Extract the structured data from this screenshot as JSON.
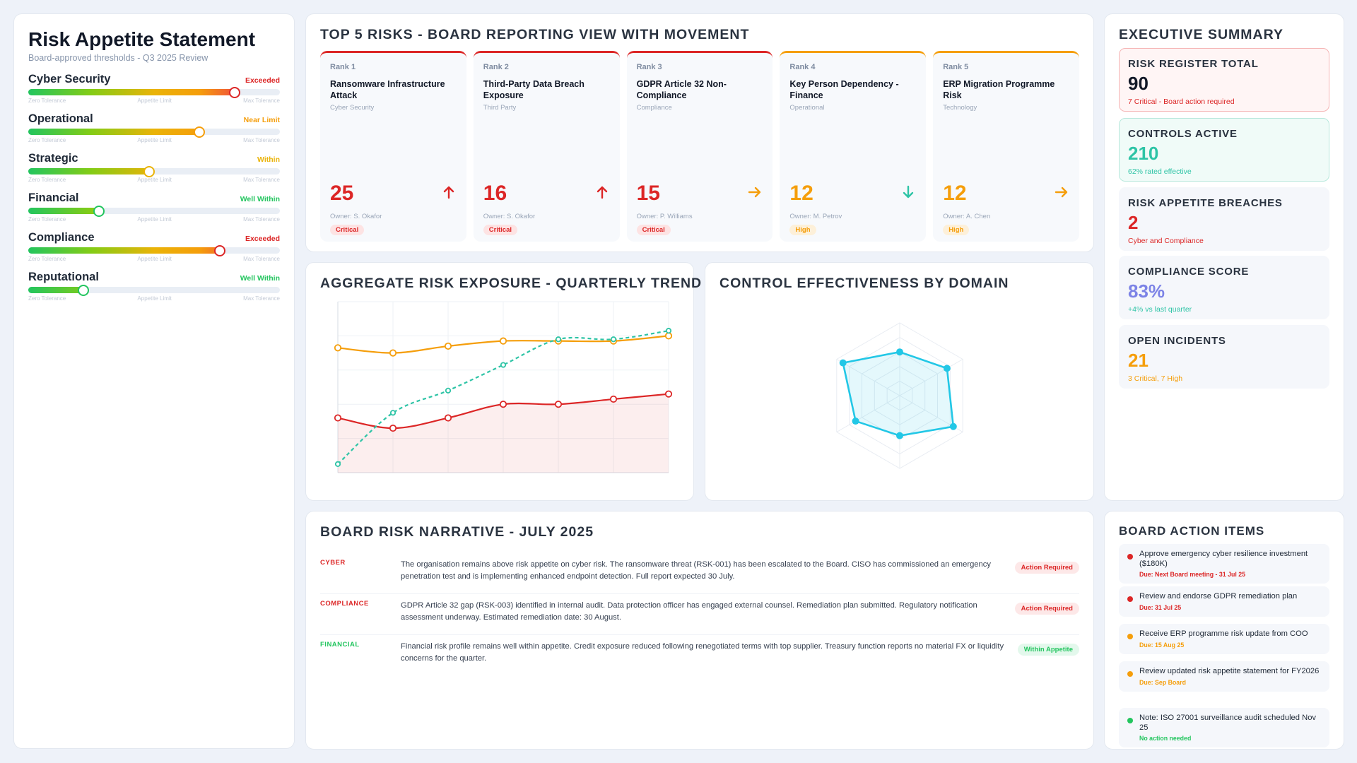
{
  "colors": {
    "critical": "#dc2626",
    "high": "#f59e0b",
    "within": "#eab308",
    "well_within": "#22c55e",
    "teal": "#2ec4a6",
    "cyan": "#22c7e6",
    "purple": "#7c83e6",
    "dark": "#111827"
  },
  "appetite": {
    "title": "Risk Appetite Statement",
    "subtitle": "Board-approved thresholds - Q3 2025 Review",
    "scale": {
      "left": "Zero Tolerance",
      "mid": "Appetite Limit",
      "right": "Max Tolerance"
    },
    "items": [
      {
        "name": "Cyber Security",
        "status": "Exceeded",
        "level": 0.82,
        "color": "#dc2626"
      },
      {
        "name": "Operational",
        "status": "Near Limit",
        "level": 0.68,
        "color": "#f59e0b"
      },
      {
        "name": "Strategic",
        "status": "Within",
        "level": 0.48,
        "color": "#eab308"
      },
      {
        "name": "Financial",
        "status": "Well Within",
        "level": 0.28,
        "color": "#22c55e"
      },
      {
        "name": "Compliance",
        "status": "Exceeded",
        "level": 0.76,
        "color": "#dc2626"
      },
      {
        "name": "Reputational",
        "status": "Well Within",
        "level": 0.22,
        "color": "#22c55e"
      }
    ]
  },
  "top5": {
    "title": "TOP 5 RISKS - BOARD REPORTING VIEW WITH MOVEMENT",
    "risks": [
      {
        "rank": "Rank 1",
        "name": "Ransomware Infrastructure Attack",
        "category": "Cyber Security",
        "score": "25",
        "movement": "up",
        "owner": "Owner: S. Okafor",
        "badge": "Critical",
        "color": "#dc2626"
      },
      {
        "rank": "Rank 2",
        "name": "Third-Party Data Breach Exposure",
        "category": "Third Party",
        "score": "16",
        "movement": "up",
        "owner": "Owner: S. Okafor",
        "badge": "Critical",
        "color": "#dc2626"
      },
      {
        "rank": "Rank 3",
        "name": "GDPR Article 32 Non-Compliance",
        "category": "Compliance",
        "score": "15",
        "movement": "right",
        "owner": "Owner: P. Williams",
        "badge": "Critical",
        "color": "#dc2626"
      },
      {
        "rank": "Rank 4",
        "name": "Key Person Dependency - Finance",
        "category": "Operational",
        "score": "12",
        "movement": "down",
        "owner": "Owner: M. Petrov",
        "badge": "High",
        "color": "#f59e0b"
      },
      {
        "rank": "Rank 5",
        "name": "ERP Migration Programme Risk",
        "category": "Technology",
        "score": "12",
        "movement": "right",
        "owner": "Owner: A. Chen",
        "badge": "High",
        "color": "#f59e0b"
      }
    ]
  },
  "trend": {
    "title": "AGGREGATE RISK EXPOSURE - QUARTERLY TREND"
  },
  "radar": {
    "title": "CONTROL EFFECTIVENESS BY DOMAIN"
  },
  "chart_data": [
    {
      "type": "line",
      "title": "AGGREGATE RISK EXPOSURE - QUARTERLY TREND",
      "x": [
        1,
        2,
        3,
        4,
        5,
        6,
        7
      ],
      "ylim": [
        0,
        100
      ],
      "grid": true,
      "series": [
        {
          "values": [
            73,
            70,
            74,
            77,
            77,
            77,
            80
          ],
          "color": "#f59e0b",
          "style": "solid"
        },
        {
          "values": [
            32,
            26,
            32,
            40,
            40,
            43,
            46
          ],
          "color": "#dc2626",
          "style": "solid",
          "area": true
        },
        {
          "values": [
            5,
            35,
            48,
            63,
            78,
            78,
            83
          ],
          "color": "#2ec4a6",
          "style": "dashed"
        }
      ]
    },
    {
      "type": "radar",
      "title": "CONTROL EFFECTIVENESS BY DOMAIN",
      "axes": 6,
      "max": 100,
      "values": [
        60,
        75,
        85,
        55,
        70,
        90
      ],
      "color": "#22c7e6"
    }
  ],
  "exec": {
    "title": "EXECUTIVE SUMMARY",
    "kpis": [
      {
        "label": "RISK REGISTER TOTAL",
        "value": "90",
        "sub": "7 Critical - Board action required",
        "value_color": "#111827",
        "sub_color": "#dc2626",
        "bg": "#fff5f5",
        "border": "#f5b5b5"
      },
      {
        "label": "CONTROLS ACTIVE",
        "value": "210",
        "sub": "62% rated effective",
        "value_color": "#2ec4a6",
        "sub_color": "#2ec4a6",
        "bg": "#f0fbf8",
        "border": "#b7e8dc"
      },
      {
        "label": "RISK APPETITE BREACHES",
        "value": "2",
        "sub": "Cyber and Compliance",
        "value_color": "#dc2626",
        "sub_color": "#dc2626",
        "bg": "#f5f7fb",
        "border": "#f5f7fb"
      },
      {
        "label": "COMPLIANCE SCORE",
        "value": "83%",
        "sub": "+4% vs last quarter",
        "value_color": "#7c83e6",
        "sub_color": "#2ec4a6",
        "bg": "#f5f7fb",
        "border": "#f5f7fb"
      },
      {
        "label": "OPEN INCIDENTS",
        "value": "21",
        "sub": "3 Critical, 7 High",
        "value_color": "#f59e0b",
        "sub_color": "#f59e0b",
        "bg": "#f5f7fb",
        "border": "#f5f7fb"
      }
    ]
  },
  "narrative": {
    "title": "BOARD RISK NARRATIVE - JULY 2025",
    "rows": [
      {
        "category": "CYBER",
        "text": "The organisation remains above risk appetite on cyber risk. The ransomware threat (RSK-001) has been escalated to the Board. CISO has commissioned an emergency penetration test and is implementing enhanced endpoint detection. Full report expected 30 July.",
        "badge": "Action Required",
        "color": "#dc2626",
        "badge_bg": "#fde8e8"
      },
      {
        "category": "COMPLIANCE",
        "text": "GDPR Article 32 gap (RSK-003) identified in internal audit. Data protection officer has engaged external counsel. Remediation plan submitted. Regulatory notification assessment underway. Estimated remediation date: 30 August.",
        "badge": "Action Required",
        "color": "#dc2626",
        "badge_bg": "#fde8e8"
      },
      {
        "category": "FINANCIAL",
        "text": "Financial risk profile remains well within appetite. Credit exposure reduced following renegotiated terms with top supplier. Treasury function reports no material FX or liquidity concerns for the quarter.",
        "badge": "Within Appetite",
        "color": "#22c55e",
        "badge_bg": "#e3f8ec"
      }
    ]
  },
  "actions": {
    "title": "BOARD ACTION ITEMS",
    "items": [
      {
        "text": "Approve emergency cyber resilience investment ($180K)",
        "due": "Due: Next Board meeting - 31 Jul 25",
        "color": "#dc2626"
      },
      {
        "text": "Review and endorse GDPR remediation plan",
        "due": "Due: 31 Jul 25",
        "color": "#dc2626"
      },
      {
        "text": "Receive ERP programme risk update from COO",
        "due": "Due: 15 Aug 25",
        "color": "#f59e0b"
      },
      {
        "text": "Review updated risk appetite statement for FY2026",
        "due": "Due: Sep Board",
        "color": "#f59e0b"
      },
      {
        "text": "Note: ISO 27001 surveillance audit scheduled Nov 25",
        "due": "No action needed",
        "color": "#22c55e"
      }
    ]
  }
}
